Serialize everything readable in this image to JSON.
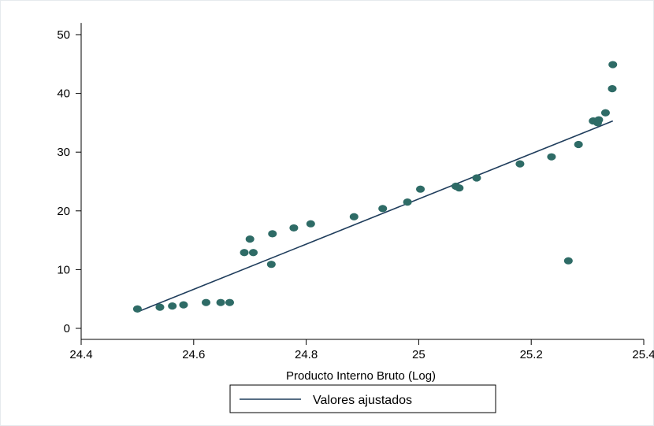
{
  "chart_data": {
    "type": "scatter",
    "title": "",
    "xlabel": "Producto Interno Bruto (Log)",
    "ylabel": "",
    "xlim": [
      24.4,
      25.4
    ],
    "ylim": [
      -1,
      52
    ],
    "xticks": [
      24.4,
      24.6,
      24.8,
      25,
      25.2,
      25.4
    ],
    "xtick_labels": [
      "24.4",
      "24.6",
      "24.8",
      "25",
      "25.2",
      "25.4"
    ],
    "yticks": [
      0,
      10,
      20,
      30,
      40,
      50
    ],
    "ytick_labels": [
      "0",
      "10",
      "20",
      "30",
      "40",
      "50"
    ],
    "grid": false,
    "legend": {
      "position": "bottom",
      "entries": [
        "Valores ajustados"
      ]
    },
    "colors": {
      "points": "#2e6b66",
      "fit_line": "#1f3d5c",
      "axis": "#000000",
      "frame": "#e6eaee"
    },
    "series": [
      {
        "type": "scatter",
        "x": [
          24.5,
          24.54,
          24.562,
          24.582,
          24.622,
          24.648,
          24.664,
          24.69,
          24.7,
          24.706,
          24.738,
          24.74,
          24.778,
          24.808,
          24.885,
          24.936,
          24.98,
          25.003,
          25.066,
          25.072,
          25.103,
          25.18,
          25.236,
          25.266,
          25.284,
          25.31,
          25.318,
          25.32,
          25.332,
          25.344,
          25.345
        ],
        "y": [
          3.3,
          3.6,
          3.8,
          4.0,
          4.4,
          4.4,
          4.4,
          12.9,
          15.2,
          12.9,
          10.9,
          16.1,
          17.1,
          17.8,
          19.0,
          20.4,
          21.5,
          23.7,
          24.2,
          23.9,
          25.6,
          28.0,
          29.2,
          11.5,
          31.3,
          35.3,
          35.0,
          35.5,
          36.7,
          40.8,
          44.9
        ]
      },
      {
        "name": "Valores ajustados",
        "type": "line",
        "x": [
          24.5,
          25.345
        ],
        "y": [
          2.8,
          35.3
        ]
      }
    ]
  }
}
